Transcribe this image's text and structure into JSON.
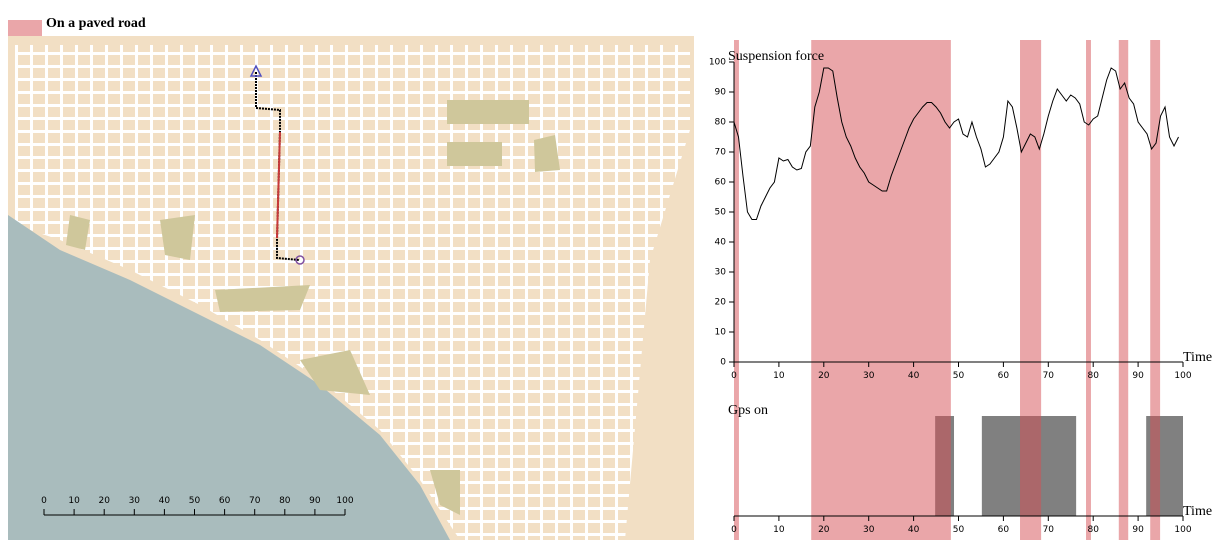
{
  "legend": {
    "label": "On a paved road",
    "color": "#d64e54"
  },
  "map": {
    "scale_ticks": [
      0,
      10,
      20,
      30,
      40,
      50,
      60,
      70,
      80,
      90,
      100
    ]
  },
  "paved_intervals": [
    [
      0,
      1.1
    ],
    [
      17.2,
      48.3
    ],
    [
      63.7,
      68.4
    ],
    [
      78.4,
      79.5
    ],
    [
      85.7,
      87.8
    ],
    [
      92.7,
      94.9
    ]
  ],
  "chart_data": [
    {
      "type": "line",
      "title": "Suspension force",
      "xlabel": "Time",
      "color": "#000000",
      "xlim": [
        0,
        100
      ],
      "ylim": [
        0,
        100
      ],
      "xticks": [
        0,
        10,
        20,
        30,
        40,
        50,
        60,
        70,
        80,
        90,
        100
      ],
      "yticks": [
        0,
        10,
        20,
        30,
        40,
        50,
        60,
        70,
        80,
        90,
        100
      ],
      "x": [
        0,
        1,
        2,
        3,
        4,
        5,
        6,
        7,
        8,
        9,
        10,
        11,
        12,
        13,
        14,
        15,
        16,
        17,
        18,
        19,
        20,
        21,
        22,
        23,
        24,
        25,
        26,
        27,
        28,
        29,
        30,
        31,
        32,
        33,
        34,
        35,
        36,
        37,
        38,
        39,
        40,
        41,
        42,
        43,
        44,
        45,
        46,
        47,
        48,
        49,
        50,
        51,
        52,
        53,
        54,
        55,
        56,
        57,
        58,
        59,
        60,
        61,
        62,
        63,
        64,
        65,
        66,
        67,
        68,
        69,
        70,
        71,
        72,
        73,
        74,
        75,
        76,
        77,
        78,
        79,
        80,
        81,
        82,
        83,
        84,
        85,
        86,
        87,
        88,
        89,
        90,
        91,
        92,
        93,
        94,
        95,
        96,
        97,
        98,
        99
      ],
      "values": [
        80,
        75,
        62,
        50,
        47.5,
        47.5,
        52,
        55,
        58,
        60,
        68,
        67,
        67.5,
        65,
        64,
        64.5,
        70,
        72,
        85,
        90,
        98,
        98,
        97,
        88,
        80,
        75,
        72,
        68,
        65,
        63,
        60,
        59,
        58,
        57,
        57,
        62,
        66,
        70,
        74,
        78,
        81,
        83,
        85,
        86.5,
        86.5,
        85,
        83,
        80,
        78,
        80,
        81,
        76,
        75,
        80,
        75,
        71,
        65,
        66,
        68,
        70,
        75,
        87,
        85,
        78,
        70,
        73,
        76,
        75,
        71,
        76,
        82,
        87,
        91,
        89,
        87,
        89,
        88,
        86,
        80,
        79,
        81,
        82,
        88,
        94,
        98,
        97,
        91,
        93,
        88,
        86,
        80,
        78,
        76,
        71,
        73,
        82,
        85,
        75,
        72,
        75
      ]
    },
    {
      "type": "intervals",
      "title": "Gps on",
      "xlabel": "Time",
      "color": "#808080",
      "xlim": [
        0,
        100
      ],
      "xticks": [
        0,
        10,
        20,
        30,
        40,
        50,
        60,
        70,
        80,
        90,
        100
      ],
      "intervals": [
        [
          44.8,
          49
        ],
        [
          55.2,
          76.2
        ],
        [
          91.8,
          100
        ]
      ]
    }
  ]
}
